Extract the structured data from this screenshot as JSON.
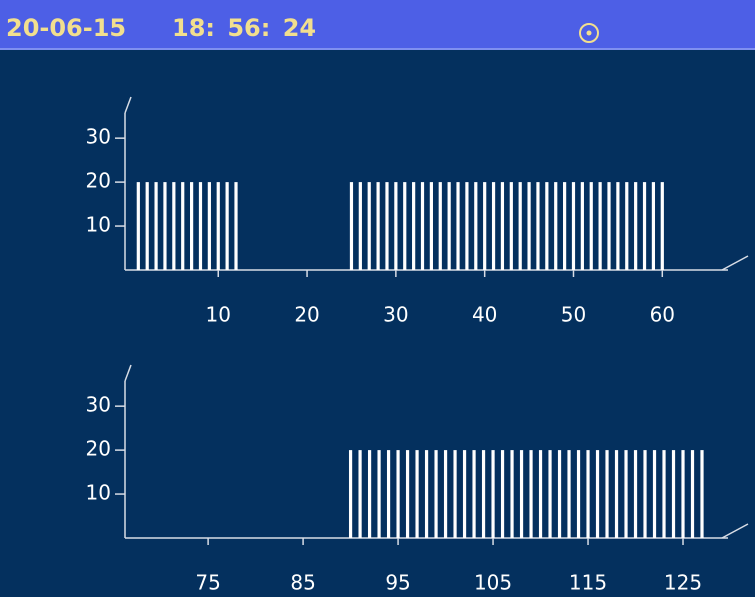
{
  "header": {
    "date": "20-06-15",
    "time": "18: 56: 24"
  },
  "chart_data": [
    {
      "type": "bar",
      "color": "#ffffff",
      "x": [
        1,
        2,
        3,
        4,
        5,
        6,
        7,
        8,
        9,
        10,
        11,
        12,
        25,
        26,
        27,
        28,
        29,
        30,
        31,
        32,
        33,
        34,
        35,
        36,
        37,
        38,
        39,
        40,
        41,
        42,
        43,
        44,
        45,
        46,
        47,
        48,
        49,
        50,
        51,
        52,
        53,
        54,
        55,
        56,
        57,
        58,
        59,
        60
      ],
      "values": [
        20,
        20,
        20,
        20,
        20,
        20,
        20,
        20,
        20,
        20,
        20,
        20,
        20,
        20,
        20,
        20,
        20,
        20,
        20,
        20,
        20,
        20,
        20,
        20,
        20,
        20,
        20,
        20,
        20,
        20,
        20,
        20,
        20,
        20,
        20,
        20,
        20,
        20,
        20,
        20,
        20,
        20,
        20,
        20,
        20,
        20,
        20,
        20
      ],
      "xlim": [
        -0.5,
        68.75
      ],
      "xticks": [
        10,
        20,
        30,
        40,
        50,
        60
      ],
      "ylim": [
        0,
        38
      ],
      "yticks": [
        10,
        20,
        30
      ]
    },
    {
      "type": "bar",
      "color": "#ffffff",
      "x": [
        90,
        91,
        92,
        93,
        94,
        95,
        96,
        97,
        98,
        99,
        100,
        101,
        102,
        103,
        104,
        105,
        106,
        107,
        108,
        109,
        110,
        111,
        112,
        113,
        114,
        115,
        116,
        117,
        118,
        119,
        120,
        121,
        122,
        123,
        124,
        125,
        126,
        127
      ],
      "values": [
        20,
        20,
        20,
        20,
        20,
        20,
        20,
        20,
        20,
        20,
        20,
        20,
        20,
        20,
        20,
        20,
        20,
        20,
        20,
        20,
        20,
        20,
        20,
        20,
        20,
        20,
        20,
        20,
        20,
        20,
        20,
        20,
        20,
        20,
        20,
        20,
        20,
        20
      ],
      "xlim": [
        66.25,
        131
      ],
      "xticks": [
        75,
        85,
        95,
        105,
        115,
        125
      ],
      "ylim": [
        0,
        38
      ],
      "yticks": [
        10,
        20,
        30
      ]
    }
  ]
}
